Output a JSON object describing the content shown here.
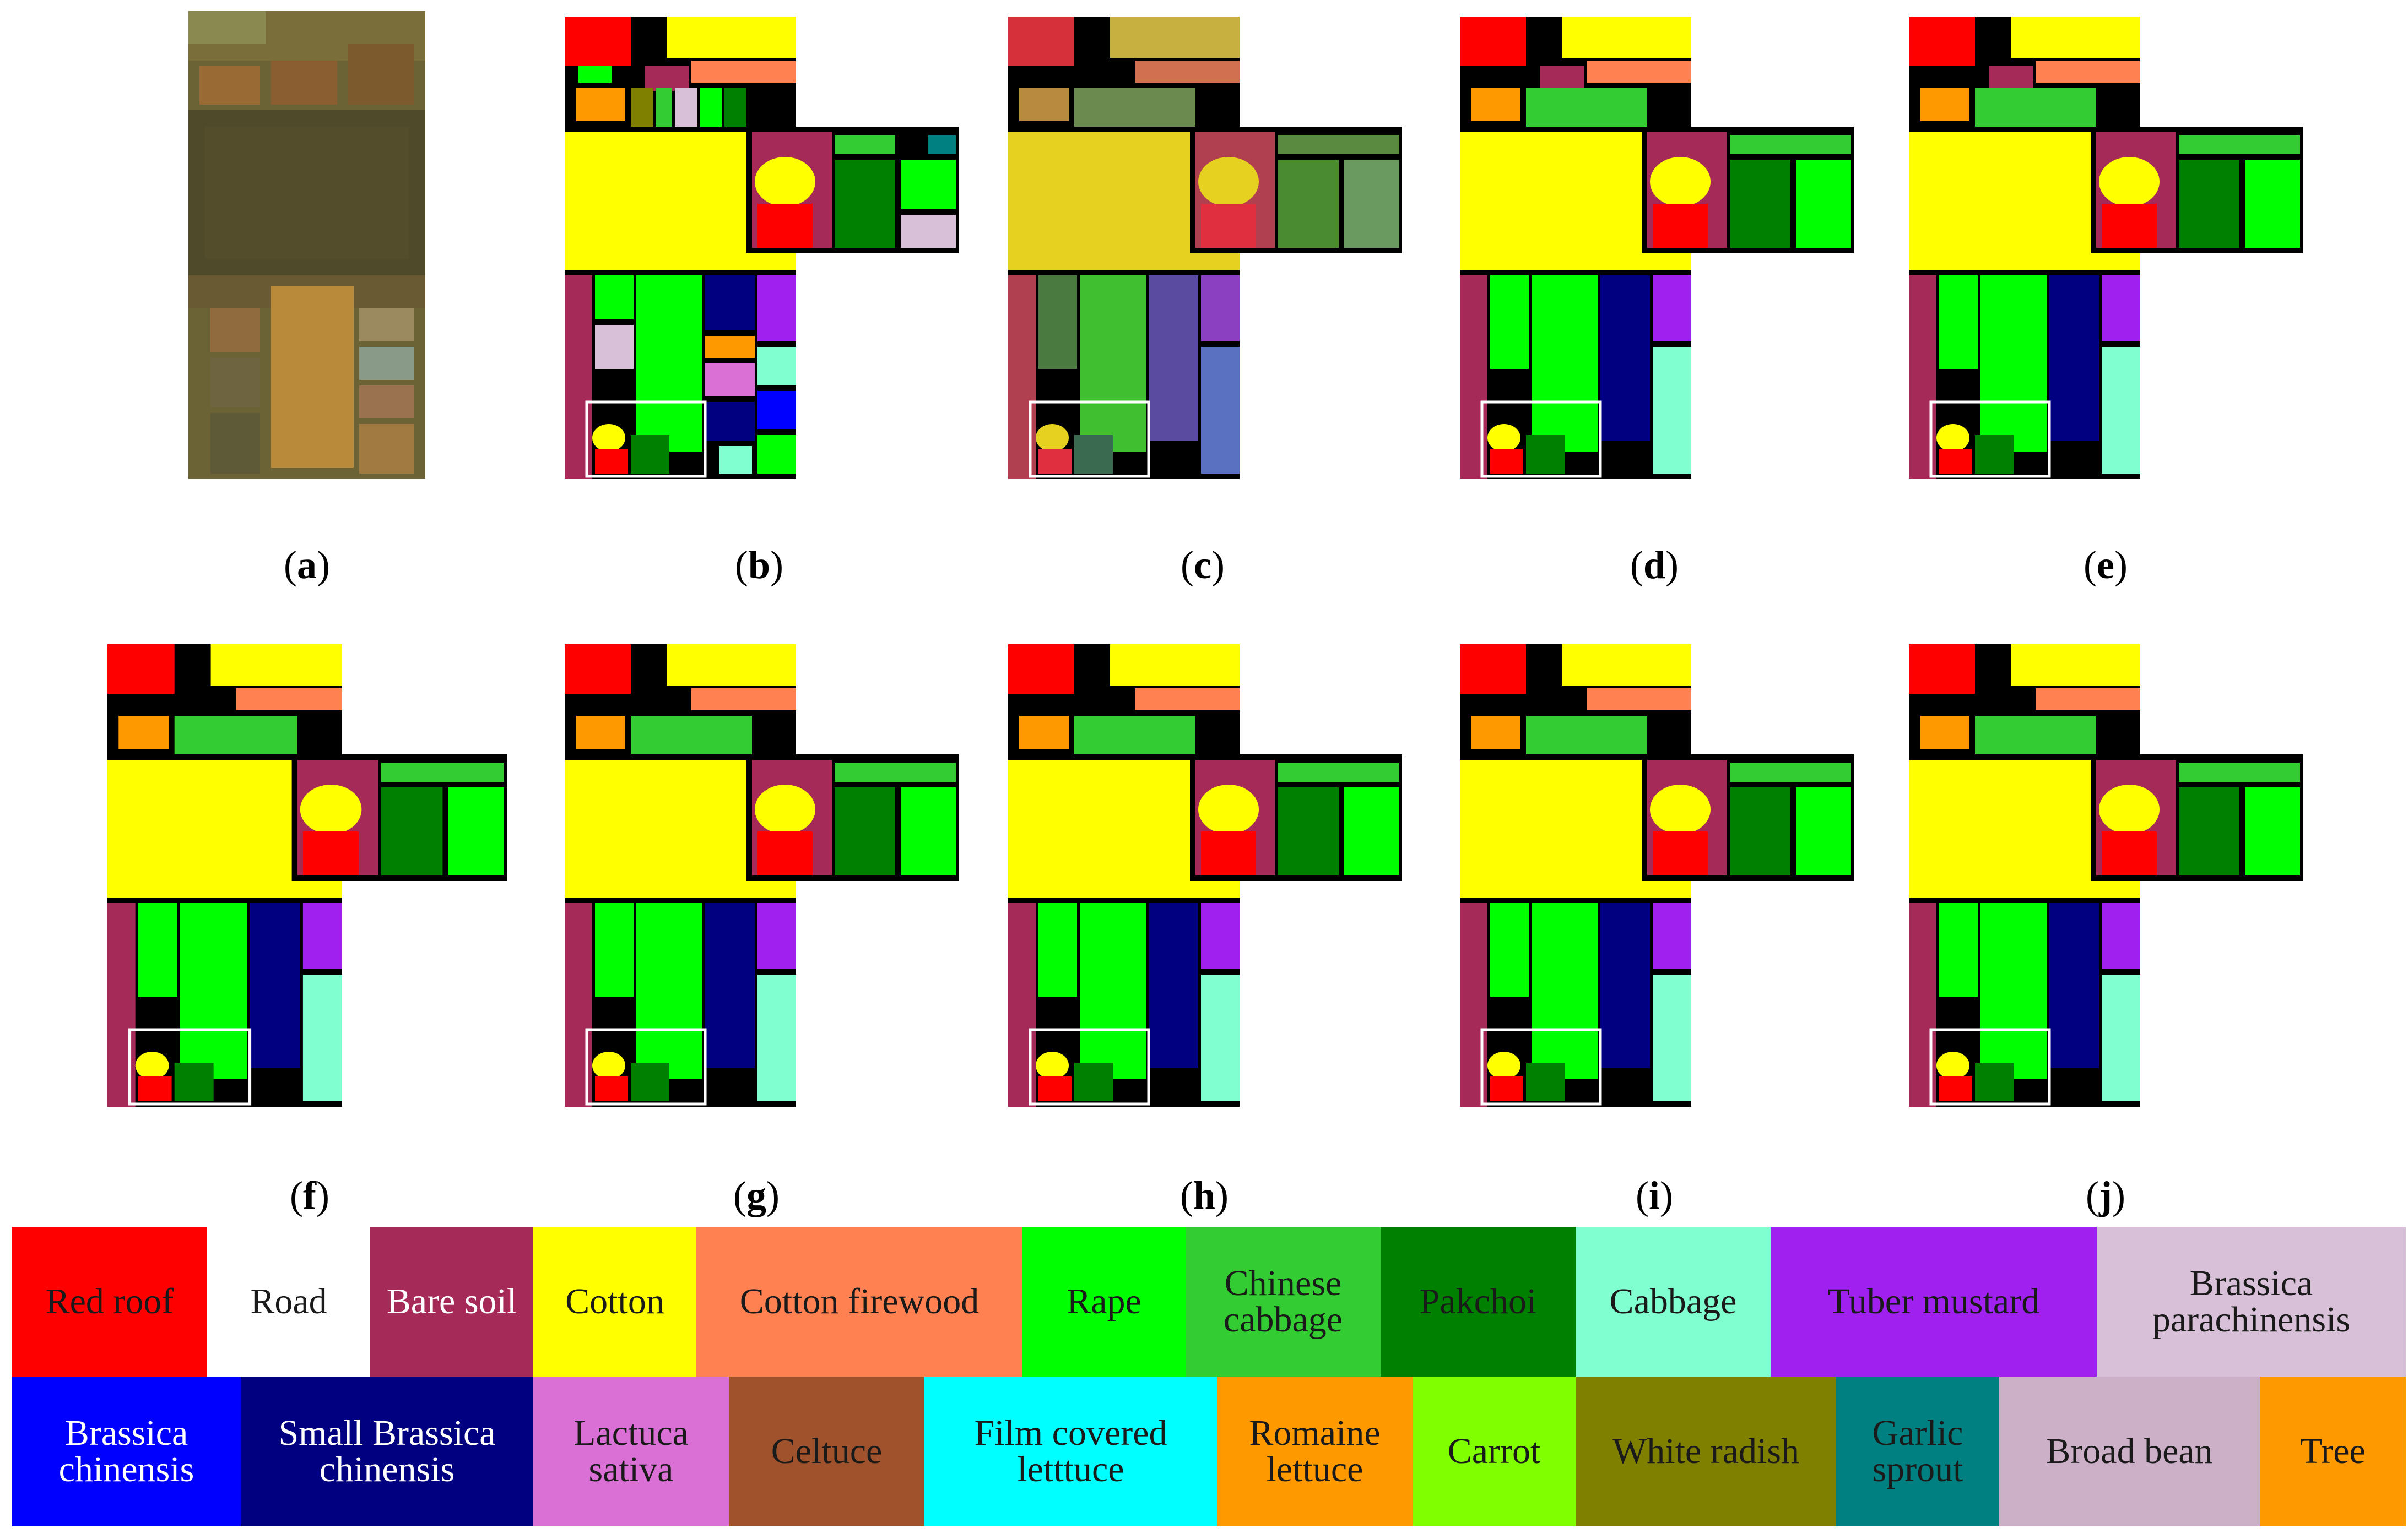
{
  "figure": {
    "panels": [
      {
        "id": "a",
        "caption": "a",
        "kind": "image"
      },
      {
        "id": "b",
        "caption": "b",
        "kind": "map"
      },
      {
        "id": "c",
        "caption": "c",
        "kind": "map"
      },
      {
        "id": "d",
        "caption": "d",
        "kind": "map"
      },
      {
        "id": "e",
        "caption": "e",
        "kind": "map"
      },
      {
        "id": "f",
        "caption": "f",
        "kind": "map"
      },
      {
        "id": "g",
        "caption": "g",
        "kind": "map"
      },
      {
        "id": "h",
        "caption": "h",
        "kind": "map"
      },
      {
        "id": "i",
        "caption": "i",
        "kind": "map"
      },
      {
        "id": "j",
        "caption": "j",
        "kind": "map"
      }
    ]
  },
  "legend": {
    "row1": [
      {
        "label": "Red roof",
        "color": "#ff0000",
        "text_color": "#1a1a1a"
      },
      {
        "label": "Road",
        "color": "#ffffff",
        "text_color": "#1a1a1a"
      },
      {
        "label": "Bare soil",
        "color": "#a52a58",
        "text_color": "#ffffff"
      },
      {
        "label": "Cotton",
        "color": "#ffff00",
        "text_color": "#1a1a1a"
      },
      {
        "label": "Cotton firewood",
        "color": "#ff8050",
        "text_color": "#1a1a1a"
      },
      {
        "label": "Rape",
        "color": "#00ff00",
        "text_color": "#1a1a1a"
      },
      {
        "label": "Chinese cabbage",
        "color": "#33cc33",
        "text_color": "#1a1a1a"
      },
      {
        "label": "Pakchoi",
        "color": "#008000",
        "text_color": "#1a1a1a"
      },
      {
        "label": "Cabbage",
        "color": "#80ffd0",
        "text_color": "#1a1a1a"
      },
      {
        "label": "Tuber mustard",
        "color": "#a020f0",
        "text_color": "#1a1a1a"
      },
      {
        "label": "Brassica parachinensis",
        "color": "#d8c0d8",
        "text_color": "#1a1a1a"
      }
    ],
    "row2": [
      {
        "label": "Brassica chinensis",
        "color": "#0000ff",
        "text_color": "#ffffff"
      },
      {
        "label": "Small Brassica chinensis",
        "color": "#000080",
        "text_color": "#ffffff"
      },
      {
        "label": "Lactuca sativa",
        "color": "#da70d6",
        "text_color": "#1a1a1a"
      },
      {
        "label": "Celtuce",
        "color": "#a0522d",
        "text_color": "#1a1a1a"
      },
      {
        "label": "Film covered letttuce",
        "color": "#00ffff",
        "text_color": "#1a1a1a"
      },
      {
        "label": "Romaine lettuce",
        "color": "#ff9900",
        "text_color": "#1a1a1a"
      },
      {
        "label": "Carrot",
        "color": "#80ff00",
        "text_color": "#1a1a1a"
      },
      {
        "label": "White radish",
        "color": "#808000",
        "text_color": "#1a1a1a"
      },
      {
        "label": "Garlic sprout",
        "color": "#008080",
        "text_color": "#1a1a1a"
      },
      {
        "label": "Broad bean",
        "color": "#ccb0c8",
        "text_color": "#1a1a1a"
      },
      {
        "label": "Tree",
        "color": "#ff9900",
        "text_color": "#1a1a1a"
      }
    ]
  }
}
